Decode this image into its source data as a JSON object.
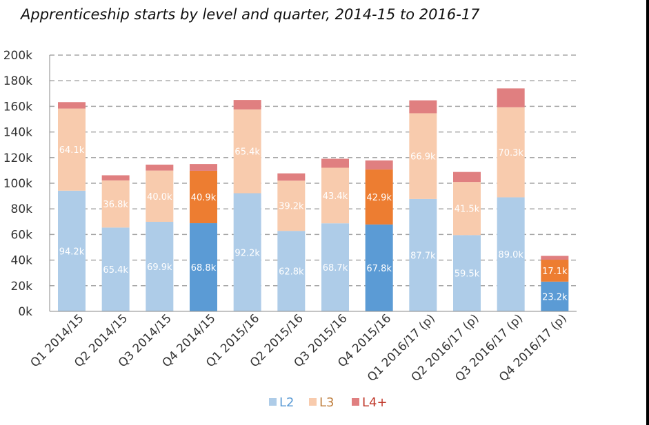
{
  "chart_data": {
    "type": "bar",
    "stacked": true,
    "title": "Apprenticeship starts by level and quarter, 2014-15 to 2016-17",
    "xlabel": "",
    "ylabel": "",
    "ylim": [
      0,
      200000
    ],
    "yticks": [
      0,
      20000,
      40000,
      60000,
      80000,
      100000,
      120000,
      140000,
      160000,
      180000,
      200000
    ],
    "ytick_labels": [
      "0k",
      "20k",
      "40k",
      "60k",
      "80k",
      "100k",
      "120k",
      "140k",
      "160k",
      "180k",
      "200k"
    ],
    "grid": "horizontal dashed",
    "legend_position": "bottom",
    "categories": [
      "Q1 2014/15",
      "Q2 2014/15",
      "Q3 2014/15",
      "Q4 2014/15",
      "Q1 2015/16",
      "Q2 2015/16",
      "Q3 2015/16",
      "Q4 2015/16",
      "Q1 2016/17 (p)",
      "Q2 2016/17 (p)",
      "Q3 2016/17 (p)",
      "Q4 2016/17 (p)"
    ],
    "highlight_categories": [
      "Q4 2014/15",
      "Q4 2015/16",
      "Q4 2016/17 (p)"
    ],
    "series": [
      {
        "name": "L2",
        "color": "#aecce8",
        "highlight_color": "#5b9bd5",
        "values": [
          94200,
          65400,
          69900,
          68800,
          92200,
          62800,
          68700,
          67800,
          87700,
          59500,
          89000,
          23200
        ],
        "labels": [
          "94.2k",
          "65.4k",
          "69.9k",
          "68.8k",
          "92.2k",
          "62.8k",
          "68.7k",
          "67.8k",
          "87.7k",
          "59.5k",
          "89.0k",
          "23.2k"
        ]
      },
      {
        "name": "L3",
        "color": "#f8cbad",
        "highlight_color": "#ed7d31",
        "values": [
          64100,
          36800,
          40000,
          40900,
          65400,
          39200,
          43400,
          42900,
          66900,
          41500,
          70300,
          17100
        ],
        "labels": [
          "64.1k",
          "36.8k",
          "40.0k",
          "40.9k",
          "65.4k",
          "39.2k",
          "43.4k",
          "42.9k",
          "66.9k",
          "41.5k",
          "70.3k",
          "17.1k"
        ]
      },
      {
        "name": "L4+",
        "color": "#e07f80",
        "highlight_color": "#e07f80",
        "values": [
          5000,
          4000,
          4600,
          5300,
          7400,
          5700,
          7000,
          7100,
          10100,
          7800,
          14700,
          3000
        ],
        "labels": []
      }
    ],
    "legend_text_colors": {
      "L2": "#5b9bd5",
      "L3": "#c08040",
      "L4+": "#c0392b"
    }
  }
}
